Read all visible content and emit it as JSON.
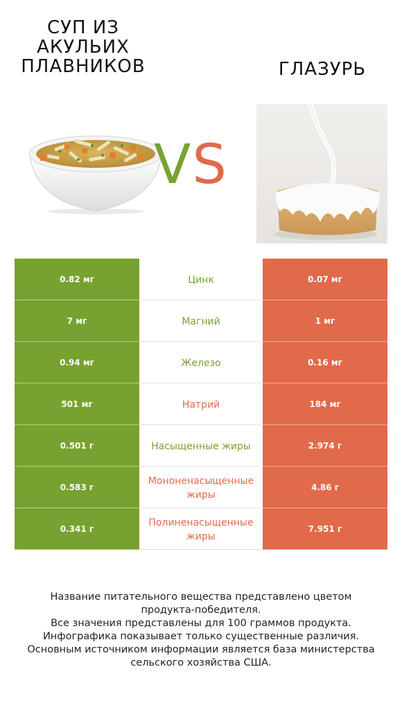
{
  "left_product": {
    "title": "Суп из акульих плавников",
    "color": "#78a22f"
  },
  "right_product": {
    "title": "Глазурь",
    "color": "#e16a4b"
  },
  "vs": {
    "v": "V",
    "s": "S"
  },
  "nutrients": [
    {
      "name": "Цинк",
      "left": "0.82 мг",
      "right": "0.07 мг",
      "winner": "left"
    },
    {
      "name": "Магний",
      "left": "7 мг",
      "right": "1 мг",
      "winner": "left"
    },
    {
      "name": "Железо",
      "left": "0.94 мг",
      "right": "0.16 мг",
      "winner": "left"
    },
    {
      "name": "Натрий",
      "left": "501 мг",
      "right": "184 мг",
      "winner": "right"
    },
    {
      "name": "Насыщенные жиры",
      "left": "0.501 г",
      "right": "2.974 г",
      "winner": "left"
    },
    {
      "name": "Мононенасыщенные жиры",
      "left": "0.583 г",
      "right": "4.86 г",
      "winner": "right"
    },
    {
      "name": "Полиненасыщенные жиры",
      "left": "0.341 г",
      "right": "7.951 г",
      "winner": "right"
    }
  ],
  "footnote": [
    "Название питательного вещества представлено цветом",
    "продукта-победителя.",
    "Все значения представлены для 100 граммов продукта.",
    "Инфографика показывает только существенные различия.",
    "Основным источником информации является база министерства",
    "сельского хозяйства США."
  ]
}
